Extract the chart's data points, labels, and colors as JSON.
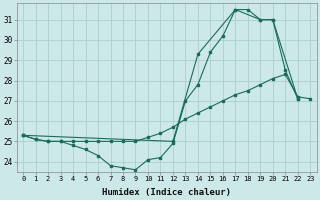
{
  "xlabel": "Humidex (Indice chaleur)",
  "background_color": "#cce8e8",
  "grid_color": "#aad0d0",
  "line_color": "#1a6b5a",
  "ylim": [
    23.5,
    31.8
  ],
  "yticks": [
    24,
    25,
    26,
    27,
    28,
    29,
    30,
    31
  ],
  "xlim": [
    -0.5,
    23.5
  ],
  "xticks": [
    0,
    1,
    2,
    3,
    4,
    5,
    6,
    7,
    8,
    9,
    10,
    11,
    12,
    13,
    14,
    15,
    16,
    17,
    18,
    19,
    20,
    21,
    22,
    23
  ],
  "line1_x": [
    0,
    1,
    2,
    3,
    4,
    5,
    6,
    7,
    8,
    9,
    10,
    11,
    12,
    13,
    14,
    15,
    16,
    17,
    18,
    19,
    20,
    21,
    22
  ],
  "line1_y": [
    25.3,
    25.1,
    25.0,
    25.0,
    24.8,
    24.6,
    24.3,
    23.8,
    23.7,
    23.6,
    24.1,
    24.2,
    24.9,
    27.0,
    27.8,
    29.4,
    30.2,
    31.5,
    31.5,
    31.0,
    31.0,
    28.5,
    27.1
  ],
  "line2_x": [
    0,
    1,
    2,
    3,
    4,
    5,
    6,
    7,
    8,
    9,
    10,
    11,
    12,
    13,
    14,
    15,
    16,
    17,
    18,
    19,
    20,
    21,
    22,
    23
  ],
  "line2_y": [
    25.3,
    25.1,
    25.0,
    25.0,
    25.0,
    25.0,
    25.0,
    25.0,
    25.0,
    25.0,
    25.2,
    25.4,
    25.7,
    26.1,
    26.4,
    26.7,
    27.0,
    27.3,
    27.5,
    27.8,
    28.1,
    28.3,
    27.2,
    27.1
  ],
  "line3_x": [
    0,
    12,
    14,
    17,
    19,
    20,
    22
  ],
  "line3_y": [
    25.3,
    25.0,
    29.3,
    31.5,
    31.0,
    31.0,
    27.1
  ]
}
